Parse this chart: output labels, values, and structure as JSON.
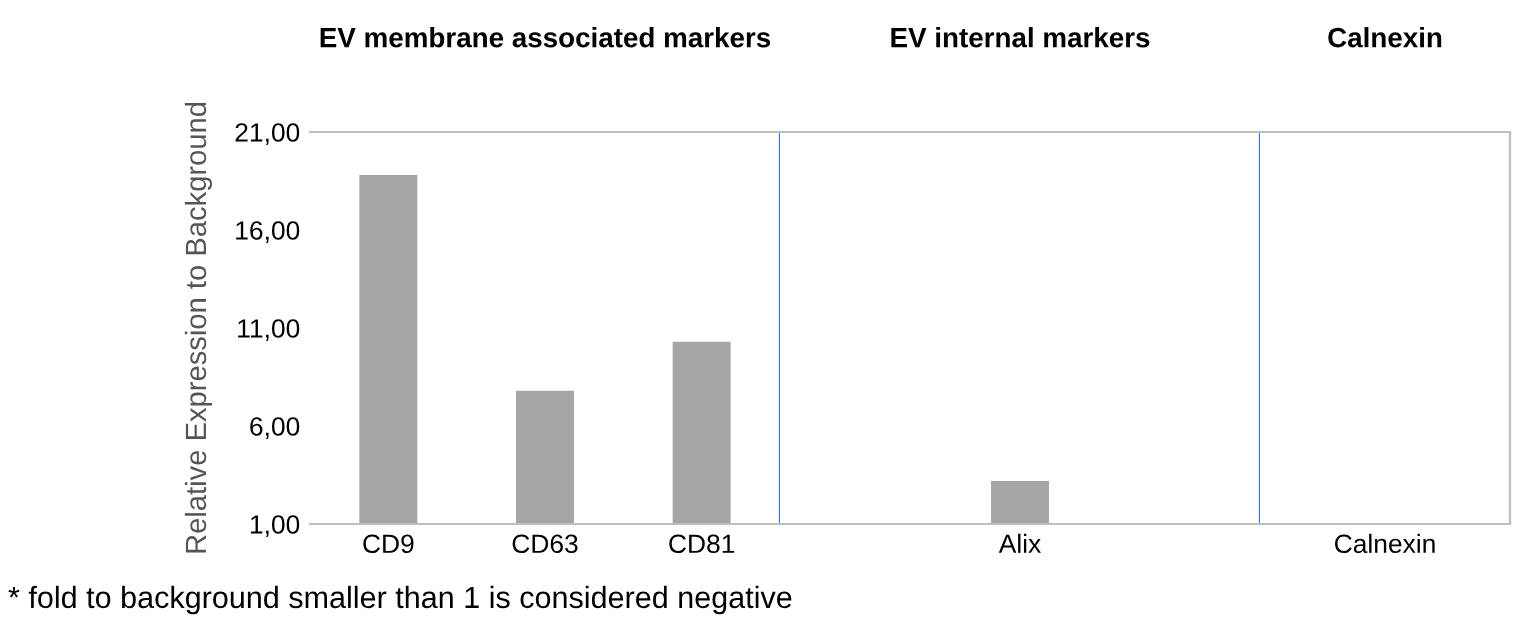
{
  "chart_data": [
    {
      "type": "bar",
      "title": "EV membrane associated markers",
      "ylabel": "Relative Expression to Background",
      "categories": [
        "CD9",
        "CD63",
        "CD81"
      ],
      "values": [
        18.8,
        7.8,
        10.3
      ],
      "color": "#a6a6a6",
      "ylim": [
        1,
        21
      ],
      "yticks": [
        {
          "value": 1,
          "label": "1,00"
        },
        {
          "value": 6,
          "label": "6,00"
        },
        {
          "value": 11,
          "label": "11,00"
        },
        {
          "value": 16,
          "label": "16,00"
        },
        {
          "value": 21,
          "label": "21,00"
        }
      ],
      "annotations": [
        "* fold to background smaller than 1 is considered negative"
      ]
    },
    {
      "type": "bar",
      "title": "EV internal markers",
      "categories": [
        "Alix"
      ],
      "values": [
        3.2
      ],
      "color": "#a6a6a6",
      "ylim": [
        1,
        21
      ],
      "tick_labels": "x"
    },
    {
      "type": "bar",
      "title": "Calnexin",
      "categories": [
        "Calnexin"
      ],
      "values": [
        null
      ],
      "color": "#a6a6a6",
      "ylim": [
        1,
        21
      ],
      "tick_labels": "x"
    }
  ]
}
